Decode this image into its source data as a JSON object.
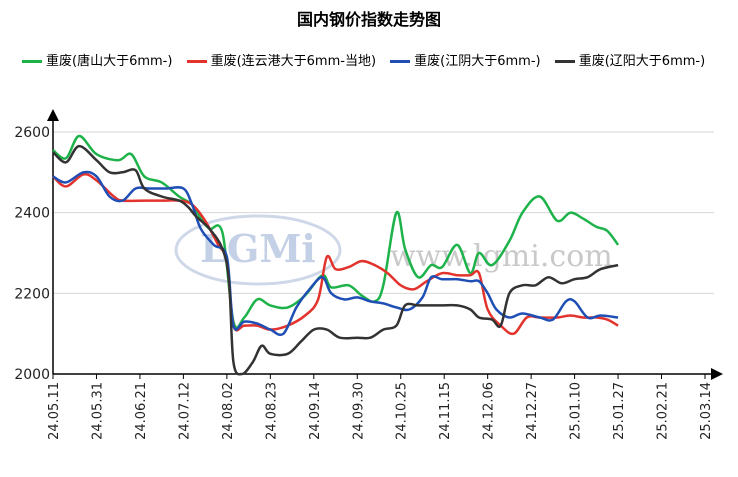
{
  "chart_data": {
    "type": "line",
    "title": "国内钢价指数走势图",
    "x": [
      "24.05.11",
      "24.05.31",
      "24.06.21",
      "24.07.12",
      "24.08.02",
      "24.08.23",
      "24.09.14",
      "24.09.30",
      "24.10.25",
      "24.11.15",
      "24.12.06",
      "24.12.27",
      "25.01.10",
      "25.01.27",
      "25.02.21",
      "25.03.14"
    ],
    "ylim": [
      2000,
      2600
    ],
    "yticks": [
      2000,
      2200,
      2400,
      2600
    ],
    "grid": true,
    "legend_position": "top",
    "series": [
      {
        "name": "重废(唐山大于6mm-)",
        "color": "#1db34a",
        "points": [
          [
            0,
            2555
          ],
          [
            0.3,
            2535
          ],
          [
            0.6,
            2590
          ],
          [
            1,
            2545
          ],
          [
            1.5,
            2530
          ],
          [
            1.8,
            2545
          ],
          [
            2.1,
            2490
          ],
          [
            2.5,
            2475
          ],
          [
            2.9,
            2440
          ],
          [
            3.2,
            2420
          ],
          [
            3.4,
            2385
          ],
          [
            3.6,
            2360
          ],
          [
            3.9,
            2350
          ],
          [
            4.15,
            2130
          ],
          [
            4.4,
            2140
          ],
          [
            4.7,
            2185
          ],
          [
            5.0,
            2170
          ],
          [
            5.4,
            2165
          ],
          [
            5.8,
            2195
          ],
          [
            6.2,
            2245
          ],
          [
            6.4,
            2215
          ],
          [
            6.8,
            2220
          ],
          [
            7.1,
            2195
          ],
          [
            7.4,
            2180
          ],
          [
            7.6,
            2220
          ],
          [
            7.9,
            2400
          ],
          [
            8.1,
            2310
          ],
          [
            8.4,
            2240
          ],
          [
            8.7,
            2270
          ],
          [
            8.95,
            2265
          ],
          [
            9.3,
            2320
          ],
          [
            9.6,
            2250
          ],
          [
            9.8,
            2300
          ],
          [
            10.1,
            2270
          ],
          [
            10.5,
            2330
          ],
          [
            10.8,
            2400
          ],
          [
            11.2,
            2440
          ],
          [
            11.6,
            2380
          ],
          [
            11.9,
            2400
          ],
          [
            12.2,
            2385
          ],
          [
            12.5,
            2365
          ],
          [
            12.75,
            2355
          ],
          [
            13.0,
            2320
          ]
        ]
      },
      {
        "name": "重废(连云港大于6mm-当地)",
        "color": "#e2332d",
        "points": [
          [
            0,
            2490
          ],
          [
            0.3,
            2465
          ],
          [
            0.7,
            2495
          ],
          [
            1,
            2480
          ],
          [
            1.4,
            2440
          ],
          [
            1.6,
            2430
          ],
          [
            2.1,
            2430
          ],
          [
            2.5,
            2430
          ],
          [
            2.9,
            2430
          ],
          [
            3.2,
            2420
          ],
          [
            3.5,
            2380
          ],
          [
            3.8,
            2320
          ],
          [
            4.0,
            2280
          ],
          [
            4.15,
            2120
          ],
          [
            4.4,
            2120
          ],
          [
            4.7,
            2120
          ],
          [
            5.0,
            2110
          ],
          [
            5.4,
            2120
          ],
          [
            5.8,
            2145
          ],
          [
            6.1,
            2185
          ],
          [
            6.3,
            2290
          ],
          [
            6.5,
            2260
          ],
          [
            6.8,
            2265
          ],
          [
            7.1,
            2280
          ],
          [
            7.4,
            2270
          ],
          [
            7.7,
            2250
          ],
          [
            8.0,
            2220
          ],
          [
            8.3,
            2210
          ],
          [
            8.6,
            2230
          ],
          [
            8.95,
            2250
          ],
          [
            9.3,
            2245
          ],
          [
            9.6,
            2245
          ],
          [
            9.8,
            2250
          ],
          [
            10.0,
            2160
          ],
          [
            10.3,
            2120
          ],
          [
            10.6,
            2100
          ],
          [
            10.9,
            2140
          ],
          [
            11.2,
            2140
          ],
          [
            11.6,
            2140
          ],
          [
            11.9,
            2145
          ],
          [
            12.2,
            2140
          ],
          [
            12.5,
            2140
          ],
          [
            12.75,
            2135
          ],
          [
            13.0,
            2120
          ]
        ]
      },
      {
        "name": "重废(江阴大于6mm-)",
        "color": "#1f4fb5",
        "points": [
          [
            0,
            2490
          ],
          [
            0.3,
            2475
          ],
          [
            0.7,
            2500
          ],
          [
            1,
            2490
          ],
          [
            1.3,
            2440
          ],
          [
            1.6,
            2430
          ],
          [
            1.9,
            2460
          ],
          [
            2.2,
            2460
          ],
          [
            2.6,
            2460
          ],
          [
            3.0,
            2460
          ],
          [
            3.2,
            2420
          ],
          [
            3.4,
            2360
          ],
          [
            3.7,
            2320
          ],
          [
            4.0,
            2290
          ],
          [
            4.15,
            2120
          ],
          [
            4.4,
            2130
          ],
          [
            4.7,
            2125
          ],
          [
            5.0,
            2110
          ],
          [
            5.3,
            2100
          ],
          [
            5.6,
            2165
          ],
          [
            5.9,
            2210
          ],
          [
            6.2,
            2240
          ],
          [
            6.4,
            2200
          ],
          [
            6.7,
            2185
          ],
          [
            7.0,
            2190
          ],
          [
            7.3,
            2180
          ],
          [
            7.6,
            2175
          ],
          [
            7.9,
            2165
          ],
          [
            8.2,
            2160
          ],
          [
            8.5,
            2190
          ],
          [
            8.7,
            2240
          ],
          [
            8.95,
            2235
          ],
          [
            9.3,
            2235
          ],
          [
            9.6,
            2230
          ],
          [
            9.8,
            2230
          ],
          [
            10.0,
            2200
          ],
          [
            10.2,
            2160
          ],
          [
            10.5,
            2140
          ],
          [
            10.8,
            2150
          ],
          [
            11.2,
            2140
          ],
          [
            11.5,
            2135
          ],
          [
            11.8,
            2180
          ],
          [
            12.0,
            2180
          ],
          [
            12.3,
            2140
          ],
          [
            12.6,
            2145
          ],
          [
            13.0,
            2140
          ]
        ]
      },
      {
        "name": "重废(辽阳大于6mm-)",
        "color": "#333333",
        "points": [
          [
            0,
            2550
          ],
          [
            0.3,
            2525
          ],
          [
            0.6,
            2565
          ],
          [
            1,
            2530
          ],
          [
            1.3,
            2500
          ],
          [
            1.6,
            2500
          ],
          [
            1.9,
            2505
          ],
          [
            2.1,
            2460
          ],
          [
            2.5,
            2440
          ],
          [
            2.9,
            2430
          ],
          [
            3.1,
            2415
          ],
          [
            3.3,
            2390
          ],
          [
            3.6,
            2360
          ],
          [
            3.9,
            2310
          ],
          [
            4.05,
            2230
          ],
          [
            4.15,
            2030
          ],
          [
            4.35,
            2000
          ],
          [
            4.6,
            2030
          ],
          [
            4.8,
            2070
          ],
          [
            5.0,
            2050
          ],
          [
            5.4,
            2050
          ],
          [
            5.7,
            2080
          ],
          [
            6.0,
            2110
          ],
          [
            6.3,
            2110
          ],
          [
            6.6,
            2090
          ],
          [
            7.0,
            2090
          ],
          [
            7.3,
            2090
          ],
          [
            7.6,
            2110
          ],
          [
            7.9,
            2120
          ],
          [
            8.1,
            2170
          ],
          [
            8.4,
            2170
          ],
          [
            8.7,
            2170
          ],
          [
            8.95,
            2170
          ],
          [
            9.3,
            2170
          ],
          [
            9.6,
            2160
          ],
          [
            9.8,
            2140
          ],
          [
            10.1,
            2135
          ],
          [
            10.3,
            2120
          ],
          [
            10.5,
            2200
          ],
          [
            10.8,
            2220
          ],
          [
            11.1,
            2220
          ],
          [
            11.4,
            2240
          ],
          [
            11.7,
            2225
          ],
          [
            12.0,
            2235
          ],
          [
            12.3,
            2240
          ],
          [
            12.6,
            2260
          ],
          [
            13.0,
            2270
          ]
        ]
      }
    ]
  },
  "watermark": {
    "logo_text": "LGMi",
    "url_text": "www.lgmi.com"
  }
}
